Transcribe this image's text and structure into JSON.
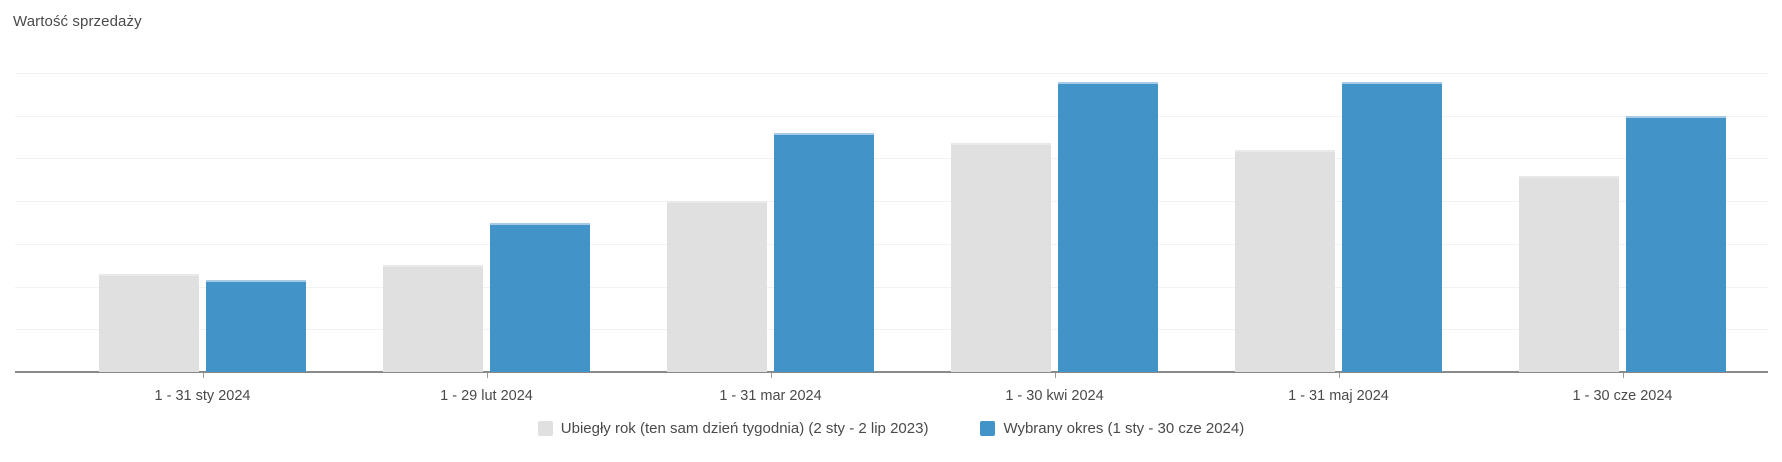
{
  "chart_data": {
    "type": "bar",
    "title": "Wartość sprzedaży",
    "categories": [
      "1 - 31 sty 2024",
      "1 - 29 lut 2024",
      "1 - 31 mar 2024",
      "1 - 30 kwi 2024",
      "1 - 31 maj 2024",
      "1 - 30 cze 2024"
    ],
    "series": [
      {
        "name": "Ubiegły rok (ten sam dzień tygodnia) (2 sty - 2 lip 2023)",
        "color": "#e0e0e0",
        "values": [
          2.3,
          2.5,
          4.0,
          5.35,
          5.2,
          4.6
        ]
      },
      {
        "name": "Wybrany okres (1 sty - 30 cze 2024)",
        "color": "#4294c8",
        "values": [
          2.15,
          3.5,
          5.6,
          6.8,
          6.8,
          6.0
        ]
      }
    ],
    "xlabel": "",
    "ylabel": "",
    "ylim": [
      0,
      7
    ],
    "ytick_interval": 1,
    "y_axis_labels_visible": false,
    "grid": true,
    "legend_position": "bottom-center",
    "colors": {
      "gridline": "#f2f2f2",
      "axis_line": "#8a8a8a",
      "text": "#4a4a4a",
      "background": "#ffffff"
    }
  }
}
